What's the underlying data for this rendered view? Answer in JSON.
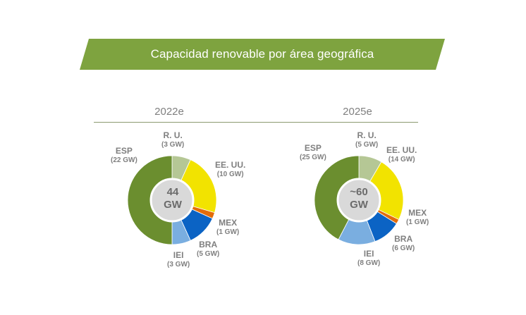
{
  "title": "Capacidad renovable por área geográfica",
  "colors": {
    "banner": "#7ea33f",
    "ESP": "#6b8e2f",
    "R. U.": "#b5c795",
    "EE. UU.": "#f2e300",
    "MEX": "#e36c0a",
    "BRA": "#0b63c4",
    "IEI": "#7aaee0",
    "center": "#d9d9d9"
  },
  "chart_data": [
    {
      "type": "pie",
      "title": "2022e",
      "center_label": [
        "44",
        "GW"
      ],
      "slices": [
        {
          "name": "R. U.",
          "value_label": "(3 GW)",
          "value": 3
        },
        {
          "name": "EE. UU.",
          "value_label": "(10 GW)",
          "value": 10
        },
        {
          "name": "MEX",
          "value_label": "(1 GW)",
          "value": 1
        },
        {
          "name": "BRA",
          "value_label": "(5 GW)",
          "value": 5
        },
        {
          "name": "IEI",
          "value_label": "(3 GW)",
          "value": 3
        },
        {
          "name": "ESP",
          "value_label": "(22 GW)",
          "value": 22
        }
      ]
    },
    {
      "type": "pie",
      "title": "2025e",
      "center_label": [
        "~60",
        "GW"
      ],
      "slices": [
        {
          "name": "R. U.",
          "value_label": "(5 GW)",
          "value": 5
        },
        {
          "name": "EE. UU.",
          "value_label": "(14 GW)",
          "value": 14
        },
        {
          "name": "MEX",
          "value_label": "(1 GW)",
          "value": 1
        },
        {
          "name": "BRA",
          "value_label": "(6 GW)",
          "value": 6
        },
        {
          "name": "IEI",
          "value_label": "(8 GW)",
          "value": 8
        },
        {
          "name": "ESP",
          "value_label": "(25 GW)",
          "value": 25
        }
      ]
    }
  ]
}
